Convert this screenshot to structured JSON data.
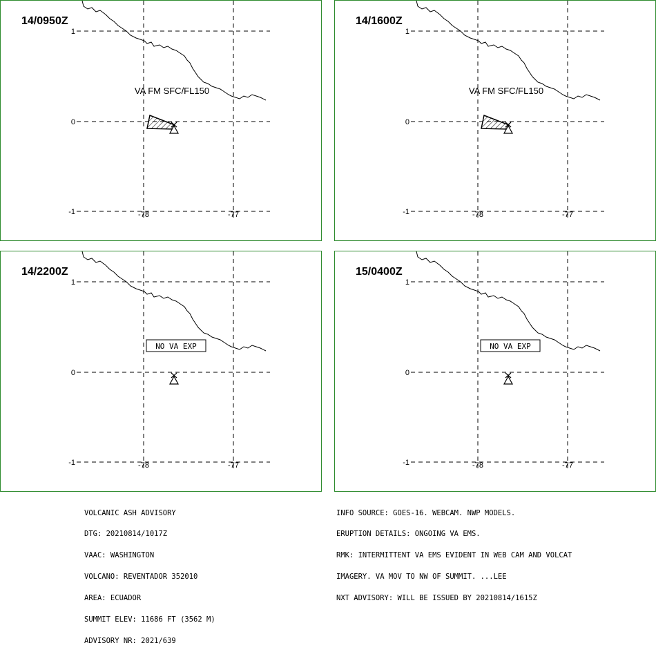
{
  "panels": [
    {
      "time": "14/0950Z",
      "label": "VA FM SFC/FL150",
      "label_boxed": false,
      "has_ash": true,
      "lat_ticks": [
        "1",
        "0",
        "-1"
      ],
      "lon_ticks": [
        "-78",
        "-77"
      ]
    },
    {
      "time": "14/1600Z",
      "label": "VA FM SFC/FL150",
      "label_boxed": false,
      "has_ash": true,
      "lat_ticks": [
        "1",
        "0",
        "-1"
      ],
      "lon_ticks": [
        "-78",
        "-77"
      ]
    },
    {
      "time": "14/2200Z",
      "label": "NO VA EXP",
      "label_boxed": true,
      "has_ash": false,
      "lat_ticks": [
        "1",
        "0",
        "-1"
      ],
      "lon_ticks": [
        "-78",
        "-77"
      ]
    },
    {
      "time": "15/0400Z",
      "label": "NO VA EXP",
      "label_boxed": true,
      "has_ash": false,
      "lat_ticks": [
        "1",
        "0",
        "-1"
      ],
      "lon_ticks": [
        "-78",
        "-77"
      ]
    }
  ],
  "advisory_left": [
    "VOLCANIC ASH ADVISORY",
    "DTG: 20210814/1017Z",
    "VAAC: WASHINGTON",
    "VOLCANO: REVENTADOR 352010",
    "AREA: ECUADOR",
    "SUMMIT ELEV: 11686 FT (3562 M)",
    "ADVISORY NR: 2021/639"
  ],
  "advisory_right": [
    "INFO SOURCE: GOES-16. WEBCAM. NWP MODELS.",
    "ERUPTION DETAILS: ONGOING VA EMS.",
    "RMK: INTERMITTENT VA EMS EVIDENT IN WEB CAM AND VOLCAT",
    "IMAGERY. VA MOV TO NW OF SUMMIT. ...LEE",
    "NXT ADVISORY: WILL BE ISSUED BY 20210814/1615Z"
  ],
  "colors": {
    "panel_border": "#2e8b2e",
    "lines": "#000000"
  },
  "icons": {
    "volcano": "volcano-icon",
    "ash_area": "hatched-polygon"
  }
}
